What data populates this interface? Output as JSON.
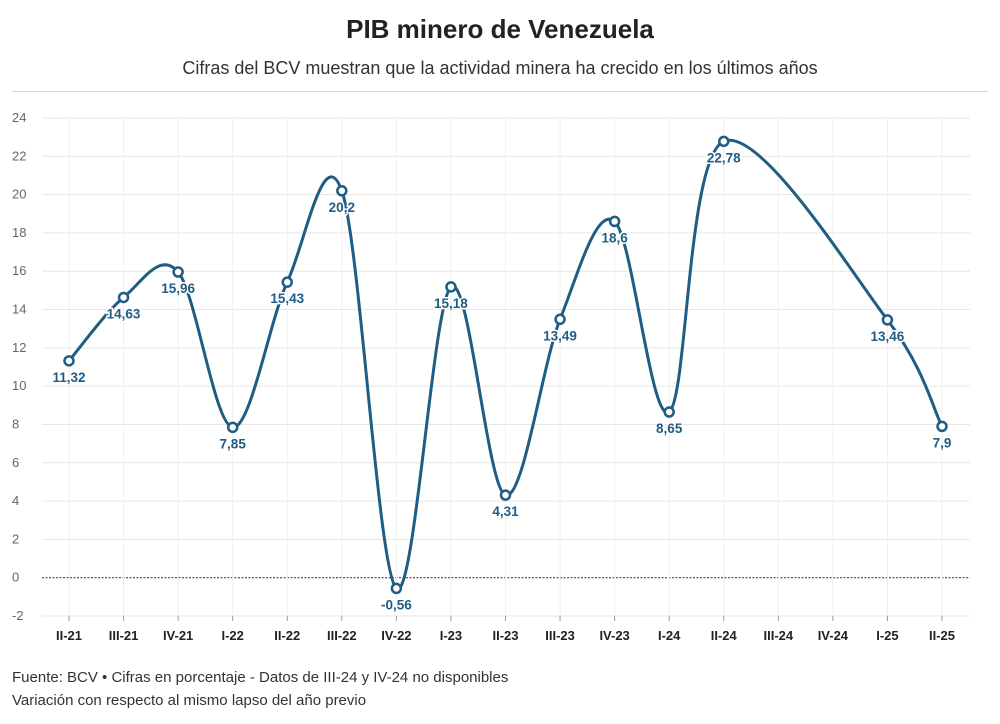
{
  "header": {
    "title": "PIB minero de Venezuela",
    "subtitle": "Cifras del BCV muestran que la actividad minera ha crecido en los últimos años"
  },
  "footer": {
    "source": "Fuente: BCV • Cifras en porcentaje - Datos de III-24 y IV-24 no disponibles",
    "note": "Variación con respecto al mismo lapso del año previo"
  },
  "chart_data": {
    "type": "line",
    "title": "PIB minero de Venezuela",
    "xlabel": "",
    "ylabel": "",
    "ylim": [
      -2,
      24
    ],
    "yticks": [
      -2,
      0,
      2,
      4,
      6,
      8,
      10,
      12,
      14,
      16,
      18,
      20,
      22,
      24
    ],
    "grid": true,
    "categories": [
      "II-21",
      "III-21",
      "IV-21",
      "I-22",
      "II-22",
      "III-22",
      "IV-22",
      "I-23",
      "II-23",
      "III-23",
      "IV-23",
      "I-24",
      "II-24",
      "III-24",
      "IV-24",
      "I-25",
      "II-25"
    ],
    "series": [
      {
        "name": "PIB minero",
        "color": "#1f5d84",
        "values": [
          11.32,
          14.63,
          15.96,
          7.85,
          15.43,
          20.2,
          -0.56,
          15.18,
          4.31,
          13.49,
          18.6,
          8.65,
          22.78,
          null,
          null,
          13.46,
          7.9
        ],
        "labels": [
          "11,32",
          "14,63",
          "15,96",
          "7,85",
          "15,43",
          "20,2",
          "-0,56",
          "15,18",
          "4,31",
          "13,49",
          "18,6",
          "8,65",
          "22,78",
          "",
          "",
          "13,46",
          "7,9"
        ]
      }
    ]
  }
}
